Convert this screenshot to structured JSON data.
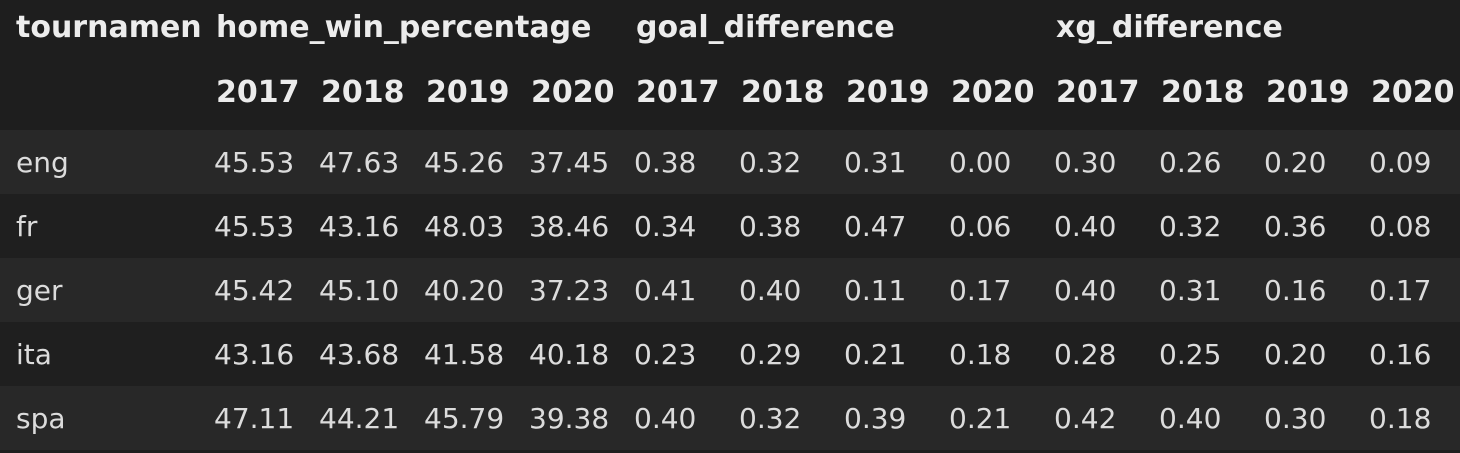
{
  "table": {
    "index_name": "tournament",
    "groups": [
      "home_win_percentage",
      "goal_difference",
      "xg_difference"
    ],
    "years": [
      "2017",
      "2018",
      "2019",
      "2020"
    ],
    "rows": [
      {
        "label": "eng",
        "values": [
          "45.53",
          "47.63",
          "45.26",
          "37.45",
          "0.38",
          "0.32",
          "0.31",
          "0.00",
          "0.30",
          "0.26",
          "0.20",
          "0.09"
        ]
      },
      {
        "label": "fr",
        "values": [
          "45.53",
          "43.16",
          "48.03",
          "38.46",
          "0.34",
          "0.38",
          "0.47",
          "0.06",
          "0.40",
          "0.32",
          "0.36",
          "0.08"
        ]
      },
      {
        "label": "ger",
        "values": [
          "45.42",
          "45.10",
          "40.20",
          "37.23",
          "0.41",
          "0.40",
          "0.11",
          "0.17",
          "0.40",
          "0.31",
          "0.16",
          "0.17"
        ]
      },
      {
        "label": "ita",
        "values": [
          "43.16",
          "43.68",
          "41.58",
          "40.18",
          "0.23",
          "0.29",
          "0.21",
          "0.18",
          "0.28",
          "0.25",
          "0.20",
          "0.16"
        ]
      },
      {
        "label": "spa",
        "values": [
          "47.11",
          "44.21",
          "45.79",
          "39.38",
          "0.40",
          "0.32",
          "0.39",
          "0.21",
          "0.42",
          "0.40",
          "0.30",
          "0.18"
        ]
      }
    ]
  }
}
